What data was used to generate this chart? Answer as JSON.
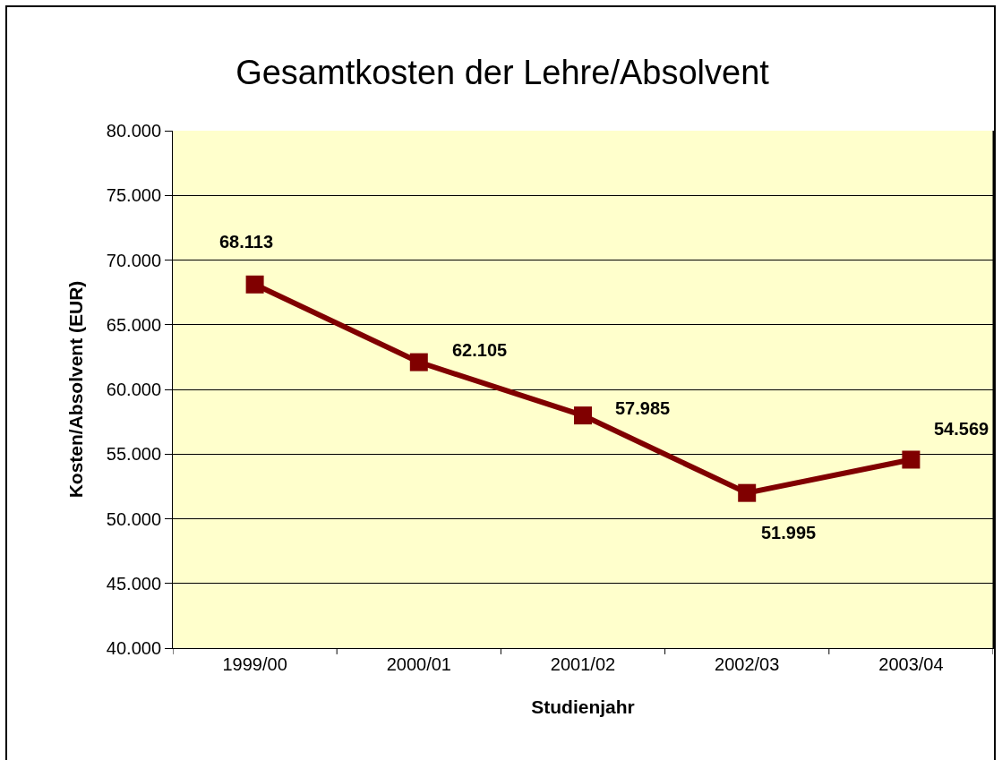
{
  "chart_data": {
    "type": "line",
    "title": "Gesamtkosten der Lehre/Absolvent",
    "xlabel": "Studienjahr",
    "ylabel": "Kosten/Absolvent (EUR)",
    "categories": [
      "1999/00",
      "2000/01",
      "2001/02",
      "2002/03",
      "2003/04"
    ],
    "series": [
      {
        "color": "#800000",
        "values": [
          68113,
          62105,
          57985,
          51995,
          54569
        ],
        "value_labels": [
          "68.113",
          "62.105",
          "57.985",
          "51.995",
          "54.569"
        ]
      }
    ],
    "ylim": [
      40000,
      80000
    ],
    "yticks": [
      {
        "value": 40000,
        "label": "40.000"
      },
      {
        "value": 45000,
        "label": "45.000"
      },
      {
        "value": 50000,
        "label": "50.000"
      },
      {
        "value": 55000,
        "label": "55.000"
      },
      {
        "value": 60000,
        "label": "60.000"
      },
      {
        "value": 65000,
        "label": "65.000"
      },
      {
        "value": 70000,
        "label": "70.000"
      },
      {
        "value": 75000,
        "label": "75.000"
      },
      {
        "value": 80000,
        "label": "80.000"
      }
    ],
    "grid": "y",
    "marker": "square",
    "line_style": "solid"
  }
}
